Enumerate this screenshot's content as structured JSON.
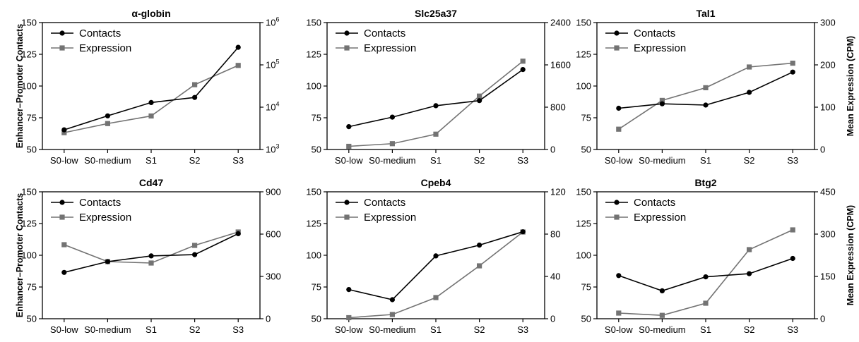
{
  "figure": {
    "left_axis_label": "Enhancer–Promoter Contacts",
    "right_axis_label": "Mean Expression (CPM)"
  },
  "chart_data": [
    {
      "type": "line",
      "title": "α-globin",
      "categories": [
        "S0-low",
        "S0-medium",
        "S1",
        "S2",
        "S3"
      ],
      "ylim_left": [
        50,
        150
      ],
      "yticks_left": [
        50,
        75,
        100,
        125,
        150
      ],
      "y_right_scale": "log",
      "ylim_right": [
        1000,
        1000000
      ],
      "yticks_right": [
        {
          "value": 1000,
          "base": "10",
          "exp": "3"
        },
        {
          "value": 10000,
          "base": "10",
          "exp": "4"
        },
        {
          "value": 100000,
          "base": "10",
          "exp": "5"
        },
        {
          "value": 1000000,
          "base": "10",
          "exp": "6"
        }
      ],
      "legend": [
        "Contacts",
        "Expression"
      ],
      "legend_position": "top-left",
      "series": [
        {
          "name": "Contacts",
          "axis": "left",
          "marker": "circle",
          "color": "#000000",
          "values": [
            65.5,
            76.5,
            87,
            91,
            130.5
          ]
        },
        {
          "name": "Expression",
          "axis": "right",
          "marker": "square",
          "color": "#737373",
          "values": [
            2500,
            4100,
            6200,
            34000,
            97000
          ]
        }
      ]
    },
    {
      "type": "line",
      "title": "Slc25a37",
      "categories": [
        "S0-low",
        "S0-medium",
        "S1",
        "S2",
        "S3"
      ],
      "ylim_left": [
        50,
        150
      ],
      "yticks_left": [
        50,
        75,
        100,
        125,
        150
      ],
      "y_right_scale": "linear",
      "ylim_right": [
        0,
        2400
      ],
      "yticks_right": [
        0,
        800,
        1600,
        2400
      ],
      "legend": [
        "Contacts",
        "Expression"
      ],
      "legend_position": "top-left",
      "series": [
        {
          "name": "Contacts",
          "axis": "left",
          "marker": "circle",
          "color": "#000000",
          "values": [
            68,
            75.5,
            84.5,
            88.5,
            113
          ]
        },
        {
          "name": "Expression",
          "axis": "right",
          "marker": "square",
          "color": "#737373",
          "values": [
            60,
            110,
            290,
            1010,
            1670
          ]
        }
      ]
    },
    {
      "type": "line",
      "title": "Tal1",
      "categories": [
        "S0-low",
        "S0-medium",
        "S1",
        "S2",
        "S3"
      ],
      "ylim_left": [
        50,
        150
      ],
      "yticks_left": [
        50,
        75,
        100,
        125,
        150
      ],
      "y_right_scale": "linear",
      "ylim_right": [
        0,
        300
      ],
      "yticks_right": [
        0,
        100,
        200,
        300
      ],
      "legend": [
        "Contacts",
        "Expression"
      ],
      "legend_position": "top-left",
      "series": [
        {
          "name": "Contacts",
          "axis": "left",
          "marker": "circle",
          "color": "#000000",
          "values": [
            82.5,
            86,
            85,
            95,
            111
          ]
        },
        {
          "name": "Expression",
          "axis": "right",
          "marker": "square",
          "color": "#737373",
          "values": [
            48,
            116,
            146,
            195,
            204
          ]
        }
      ]
    },
    {
      "type": "line",
      "title": "Cd47",
      "categories": [
        "S0-low",
        "S0-medium",
        "S1",
        "S2",
        "S3"
      ],
      "ylim_left": [
        50,
        150
      ],
      "yticks_left": [
        50,
        75,
        100,
        125,
        150
      ],
      "y_right_scale": "linear",
      "ylim_right": [
        0,
        900
      ],
      "yticks_right": [
        0,
        300,
        600,
        900
      ],
      "legend": [
        "Contacts",
        "Expression"
      ],
      "legend_position": "top-left",
      "series": [
        {
          "name": "Contacts",
          "axis": "left",
          "marker": "circle",
          "color": "#000000",
          "values": [
            86.5,
            95,
            99.5,
            100.5,
            117
          ]
        },
        {
          "name": "Expression",
          "axis": "right",
          "marker": "square",
          "color": "#737373",
          "values": [
            525,
            405,
            395,
            520,
            615
          ]
        }
      ]
    },
    {
      "type": "line",
      "title": "Cpeb4",
      "categories": [
        "S0-low",
        "S0-medium",
        "S1",
        "S2",
        "S3"
      ],
      "ylim_left": [
        50,
        150
      ],
      "yticks_left": [
        50,
        75,
        100,
        125,
        150
      ],
      "y_right_scale": "linear",
      "ylim_right": [
        0,
        120
      ],
      "yticks_right": [
        0,
        40,
        80,
        120
      ],
      "legend": [
        "Contacts",
        "Expression"
      ],
      "legend_position": "top-left",
      "series": [
        {
          "name": "Contacts",
          "axis": "left",
          "marker": "circle",
          "color": "#000000",
          "values": [
            73,
            65,
            99.5,
            108,
            118.5
          ]
        },
        {
          "name": "Expression",
          "axis": "right",
          "marker": "square",
          "color": "#737373",
          "values": [
            1,
            4,
            20,
            50,
            82
          ]
        }
      ]
    },
    {
      "type": "line",
      "title": "Btg2",
      "categories": [
        "S0-low",
        "S0-medium",
        "S1",
        "S2",
        "S3"
      ],
      "ylim_left": [
        50,
        150
      ],
      "yticks_left": [
        50,
        75,
        100,
        125,
        150
      ],
      "y_right_scale": "linear",
      "ylim_right": [
        0,
        450
      ],
      "yticks_right": [
        0,
        150,
        300,
        450
      ],
      "legend": [
        "Contacts",
        "Expression"
      ],
      "legend_position": "top-left",
      "series": [
        {
          "name": "Contacts",
          "axis": "left",
          "marker": "circle",
          "color": "#000000",
          "values": [
            84,
            72,
            83,
            85.5,
            97.5
          ]
        },
        {
          "name": "Expression",
          "axis": "right",
          "marker": "square",
          "color": "#737373",
          "values": [
            20,
            12,
            55,
            245,
            315
          ]
        }
      ]
    }
  ]
}
